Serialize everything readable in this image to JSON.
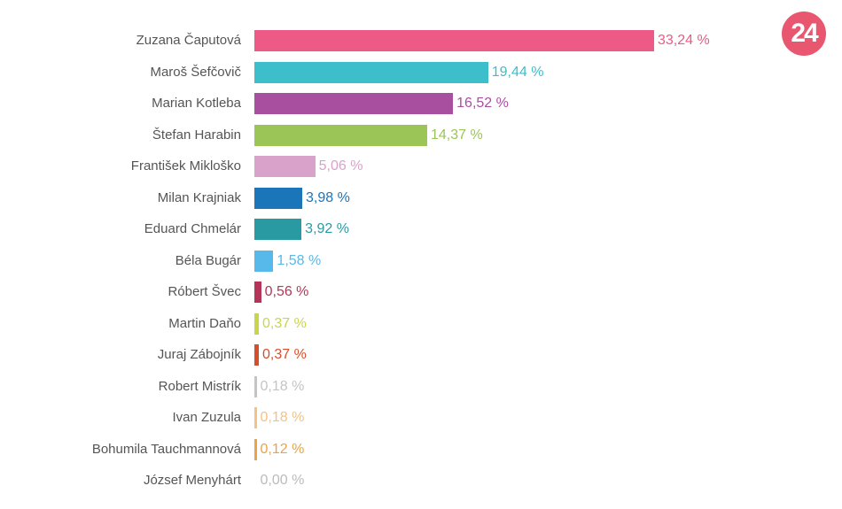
{
  "logo": {
    "text": "24",
    "color": "#e8576f"
  },
  "chart_data": {
    "type": "bar",
    "orientation": "horizontal",
    "categories": [
      "Zuzana Čaputová",
      "Maroš Šefčovič",
      "Marian Kotleba",
      "Štefan Harabin",
      "František Mikloško",
      "Milan Krajniak",
      "Eduard Chmelár",
      "Béla Bugár",
      "Róbert Švec",
      "Martin Daňo",
      "Juraj Zábojník",
      "Robert Mistrík",
      "Ivan Zuzula",
      "Bohumila Tauchmannová",
      "József Menyhárt"
    ],
    "values": [
      33.24,
      19.44,
      16.52,
      14.37,
      5.06,
      3.98,
      3.92,
      1.58,
      0.56,
      0.37,
      0.37,
      0.18,
      0.18,
      0.12,
      0.0
    ],
    "labels": [
      "33,24 %",
      "19,44 %",
      "16,52 %",
      "14,37 %",
      "5,06 %",
      "3,98 %",
      "3,92 %",
      "1,58 %",
      "0,56 %",
      "0,37 %",
      "0,37 %",
      "0,18 %",
      "0,18 %",
      "0,12 %",
      "0,00 %"
    ],
    "colors": [
      "#ec5a85",
      "#3cbfca",
      "#a84fa0",
      "#9bc557",
      "#d9a2ca",
      "#1a75b9",
      "#2a9aa2",
      "#57b9ea",
      "#b53558",
      "#c9d64b",
      "#d64f2d",
      "#c4c4c4",
      "#f2c382",
      "#eaa445",
      "#bbbbbb"
    ],
    "xlim": [
      0,
      33.24
    ],
    "title": "",
    "xlabel": "",
    "ylabel": "",
    "grid": false
  }
}
